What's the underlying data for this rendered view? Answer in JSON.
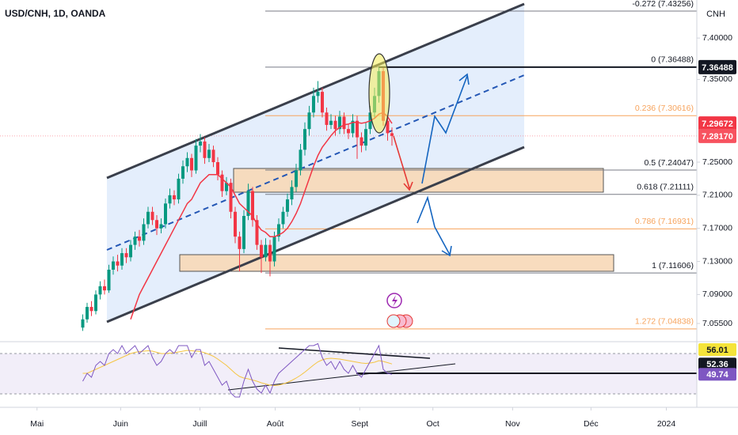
{
  "chart_data": {
    "type": "candlestick",
    "title": "USD/CNH, 1D, OANDA",
    "currency": "CNH",
    "up_color": "#089981",
    "down_color": "#f23645",
    "candles": [
      [
        7.05,
        7.066,
        7.046,
        7.06
      ],
      [
        7.06,
        7.08,
        7.056,
        7.075
      ],
      [
        7.075,
        7.082,
        7.064,
        7.07
      ],
      [
        7.07,
        7.095,
        7.066,
        7.09
      ],
      [
        7.09,
        7.106,
        7.084,
        7.1
      ],
      [
        7.1,
        7.108,
        7.09,
        7.095
      ],
      [
        7.095,
        7.126,
        7.092,
        7.12
      ],
      [
        7.12,
        7.136,
        7.114,
        7.13
      ],
      [
        7.13,
        7.138,
        7.118,
        7.125
      ],
      [
        7.125,
        7.146,
        7.12,
        7.14
      ],
      [
        7.14,
        7.146,
        7.128,
        7.135
      ],
      [
        7.135,
        7.156,
        7.13,
        7.15
      ],
      [
        7.15,
        7.166,
        7.144,
        7.16
      ],
      [
        7.16,
        7.168,
        7.148,
        7.155
      ],
      [
        7.155,
        7.182,
        7.15,
        7.175
      ],
      [
        7.175,
        7.196,
        7.17,
        7.19
      ],
      [
        7.19,
        7.196,
        7.174,
        7.18
      ],
      [
        7.18,
        7.186,
        7.162,
        7.17
      ],
      [
        7.17,
        7.182,
        7.164,
        7.175
      ],
      [
        7.175,
        7.206,
        7.17,
        7.2
      ],
      [
        7.2,
        7.218,
        7.194,
        7.21
      ],
      [
        7.21,
        7.216,
        7.198,
        7.205
      ],
      [
        7.205,
        7.236,
        7.2,
        7.23
      ],
      [
        7.23,
        7.252,
        7.224,
        7.245
      ],
      [
        7.245,
        7.262,
        7.238,
        7.255
      ],
      [
        7.255,
        7.26,
        7.232,
        7.24
      ],
      [
        7.24,
        7.278,
        7.236,
        7.27
      ],
      [
        7.27,
        7.284,
        7.262,
        7.275
      ],
      [
        7.275,
        7.28,
        7.248,
        7.255
      ],
      [
        7.255,
        7.272,
        7.25,
        7.265
      ],
      [
        7.265,
        7.27,
        7.244,
        7.25
      ],
      [
        7.25,
        7.256,
        7.228,
        7.235
      ],
      [
        7.235,
        7.24,
        7.208,
        7.215
      ],
      [
        7.215,
        7.232,
        7.21,
        7.225
      ],
      [
        7.225,
        7.23,
        7.182,
        7.19
      ],
      [
        7.19,
        7.196,
        7.152,
        7.16
      ],
      [
        7.16,
        7.166,
        7.118,
        7.145
      ],
      [
        7.145,
        7.192,
        7.14,
        7.185
      ],
      [
        7.185,
        7.224,
        7.18,
        7.215
      ],
      [
        7.215,
        7.22,
        7.172,
        7.18
      ],
      [
        7.18,
        7.186,
        7.144,
        7.15
      ],
      [
        7.15,
        7.156,
        7.116,
        7.135
      ],
      [
        7.135,
        7.158,
        7.13,
        7.15
      ],
      [
        7.15,
        7.156,
        7.112,
        7.13
      ],
      [
        7.13,
        7.166,
        7.124,
        7.16
      ],
      [
        7.16,
        7.182,
        7.154,
        7.175
      ],
      [
        7.175,
        7.196,
        7.17,
        7.19
      ],
      [
        7.19,
        7.212,
        7.184,
        7.205
      ],
      [
        7.205,
        7.228,
        7.198,
        7.22
      ],
      [
        7.22,
        7.248,
        7.214,
        7.24
      ],
      [
        7.24,
        7.272,
        7.234,
        7.265
      ],
      [
        7.265,
        7.298,
        7.258,
        7.29
      ],
      [
        7.29,
        7.318,
        7.282,
        7.31
      ],
      [
        7.31,
        7.34,
        7.304,
        7.33
      ],
      [
        7.33,
        7.348,
        7.322,
        7.335
      ],
      [
        7.335,
        7.34,
        7.304,
        7.31
      ],
      [
        7.31,
        7.316,
        7.288,
        7.295
      ],
      [
        7.295,
        7.308,
        7.29,
        7.3
      ],
      [
        7.3,
        7.306,
        7.282,
        7.29
      ],
      [
        7.29,
        7.312,
        7.284,
        7.305
      ],
      [
        7.305,
        7.31,
        7.284,
        7.29
      ],
      [
        7.29,
        7.296,
        7.278,
        7.285
      ],
      [
        7.285,
        7.308,
        7.28,
        7.3
      ],
      [
        7.3,
        7.306,
        7.254,
        7.28
      ],
      [
        7.28,
        7.286,
        7.262,
        7.27
      ],
      [
        7.27,
        7.298,
        7.264,
        7.29
      ],
      [
        7.29,
        7.318,
        7.284,
        7.31
      ],
      [
        7.31,
        7.34,
        7.304,
        7.33
      ],
      [
        7.33,
        7.36488,
        7.322,
        7.36
      ],
      [
        7.36,
        7.364,
        7.294,
        7.3
      ],
      [
        7.3,
        7.306,
        7.276,
        7.285
      ],
      [
        7.285,
        7.292,
        7.27,
        7.2817
      ]
    ],
    "ma": {
      "color": "#f23645",
      "values": [
        null,
        null,
        null,
        null,
        null,
        null,
        null,
        null,
        null,
        null,
        null,
        7.06,
        7.075,
        7.09,
        7.1,
        7.11,
        7.12,
        7.13,
        7.14,
        7.15,
        7.16,
        7.17,
        7.18,
        7.19,
        7.2,
        7.205,
        7.215,
        7.225,
        7.23,
        7.235,
        7.235,
        7.235,
        7.23,
        7.225,
        7.22,
        7.21,
        7.2,
        7.195,
        7.19,
        7.185,
        7.175,
        7.168,
        7.165,
        7.16,
        7.16,
        7.162,
        7.165,
        7.17,
        7.178,
        7.188,
        7.2,
        7.215,
        7.23,
        7.245,
        7.258,
        7.268,
        7.275,
        7.282,
        7.288,
        7.292,
        7.295,
        7.296,
        7.298,
        7.298,
        7.297,
        7.298,
        7.3,
        7.303,
        7.308,
        7.31,
        7.305,
        7.29672
      ]
    },
    "xlim": [
      -19,
      141
    ],
    "xticks": [
      {
        "value": -10.5,
        "label": "Mai"
      },
      {
        "value": 8.7,
        "label": "Juin"
      },
      {
        "value": 26.9,
        "label": "Juill"
      },
      {
        "value": 44.2,
        "label": "Août"
      },
      {
        "value": 63.6,
        "label": "Sept"
      },
      {
        "value": 80.4,
        "label": "Oct"
      },
      {
        "value": 98.7,
        "label": "Nov"
      },
      {
        "value": 116.7,
        "label": "Déc"
      },
      {
        "value": 134,
        "label": "2024"
      }
    ],
    "ylim": [
      7.033,
      7.446
    ],
    "yticks": [
      {
        "value": 7.4,
        "label": "7.40000"
      },
      {
        "value": 7.35,
        "label": "7.35000"
      },
      {
        "value": 7.25,
        "label": "7.25000"
      },
      {
        "value": 7.21,
        "label": "7.21000"
      },
      {
        "value": 7.17,
        "label": "7.17000"
      },
      {
        "value": 7.13,
        "label": "7.13000"
      },
      {
        "value": 7.09,
        "label": "7.09000"
      },
      {
        "value": 7.055,
        "label": "7.05500"
      }
    ],
    "price_labels": [
      {
        "value": 7.36488,
        "color": "#131722"
      },
      {
        "value": 7.29672,
        "color": "#f23645"
      },
      {
        "value": 7.2817,
        "label": "7.28170",
        "color": "#f7525f"
      }
    ],
    "fib_levels": [
      {
        "value": 7.43256,
        "label": "-0.272 (7.43256)",
        "color": "#131722"
      },
      {
        "value": 7.36488,
        "label": "0 (7.36488)",
        "color": "#131722"
      },
      {
        "value": 7.30616,
        "label": "0.236 (7.30616)",
        "color": "#f7a35c"
      },
      {
        "value": 7.24047,
        "label": "0.5 (7.24047)",
        "color": "#131722"
      },
      {
        "value": 7.21111,
        "label": "0.618 (7.21111)",
        "color": "#131722"
      },
      {
        "value": 7.16931,
        "label": "0.786 (7.16931)",
        "color": "#f7a35c"
      },
      {
        "value": 7.11606,
        "label": "1 (7.11606)",
        "color": "#131722"
      },
      {
        "value": 7.04838,
        "label": "1.272 (7.04838)",
        "color": "#f7a35c"
      }
    ],
    "rsi": {
      "ylim": [
        42,
        58
      ],
      "series": [
        {
          "color": "#7e57c2",
          "values": [
            48,
            50,
            49,
            52,
            53,
            52,
            55,
            56,
            55,
            57,
            55,
            56,
            57,
            55,
            56,
            57,
            54,
            52,
            53,
            55,
            56,
            55,
            57,
            57,
            57,
            54,
            56,
            56,
            52,
            53,
            51,
            49,
            47,
            48,
            45,
            44,
            44,
            48,
            51,
            48,
            46,
            45,
            47,
            45,
            48,
            50,
            51,
            52,
            53,
            54,
            55,
            56,
            57,
            57,
            57.5,
            54,
            52,
            53,
            51,
            53,
            51,
            50,
            52,
            50,
            49,
            51,
            53,
            55,
            57,
            51,
            50,
            49.74
          ]
        },
        {
          "color": "#f5c542",
          "values": [
            50,
            50,
            50.5,
            51,
            51.5,
            52,
            52.5,
            53,
            53.5,
            54,
            54.5,
            55,
            55.3,
            55.5,
            55.6,
            55.7,
            55.6,
            55.3,
            55,
            55,
            55.1,
            55.2,
            55.4,
            55.6,
            55.8,
            55.7,
            55.6,
            55.5,
            55.2,
            54.8,
            54.3,
            53.6,
            52.8,
            52,
            51,
            50,
            49.2,
            48.8,
            48.6,
            48.3,
            48,
            47.6,
            47.3,
            47,
            46.9,
            47,
            47.3,
            47.7,
            48.2,
            48.8,
            49.5,
            50.3,
            51.2,
            52.1,
            52.9,
            53.4,
            53.7,
            53.8,
            53.7,
            53.6,
            53.4,
            53.2,
            53,
            52.8,
            52.6,
            52.5,
            52.6,
            52.8,
            53.2,
            53,
            52.7,
            52.36
          ]
        }
      ],
      "labels": [
        {
          "value": 56.01,
          "color": "#f5e43a"
        },
        {
          "value": 52.36,
          "color": "#131722"
        },
        {
          "value": 49.74,
          "color": "#7e57c2"
        }
      ]
    }
  }
}
